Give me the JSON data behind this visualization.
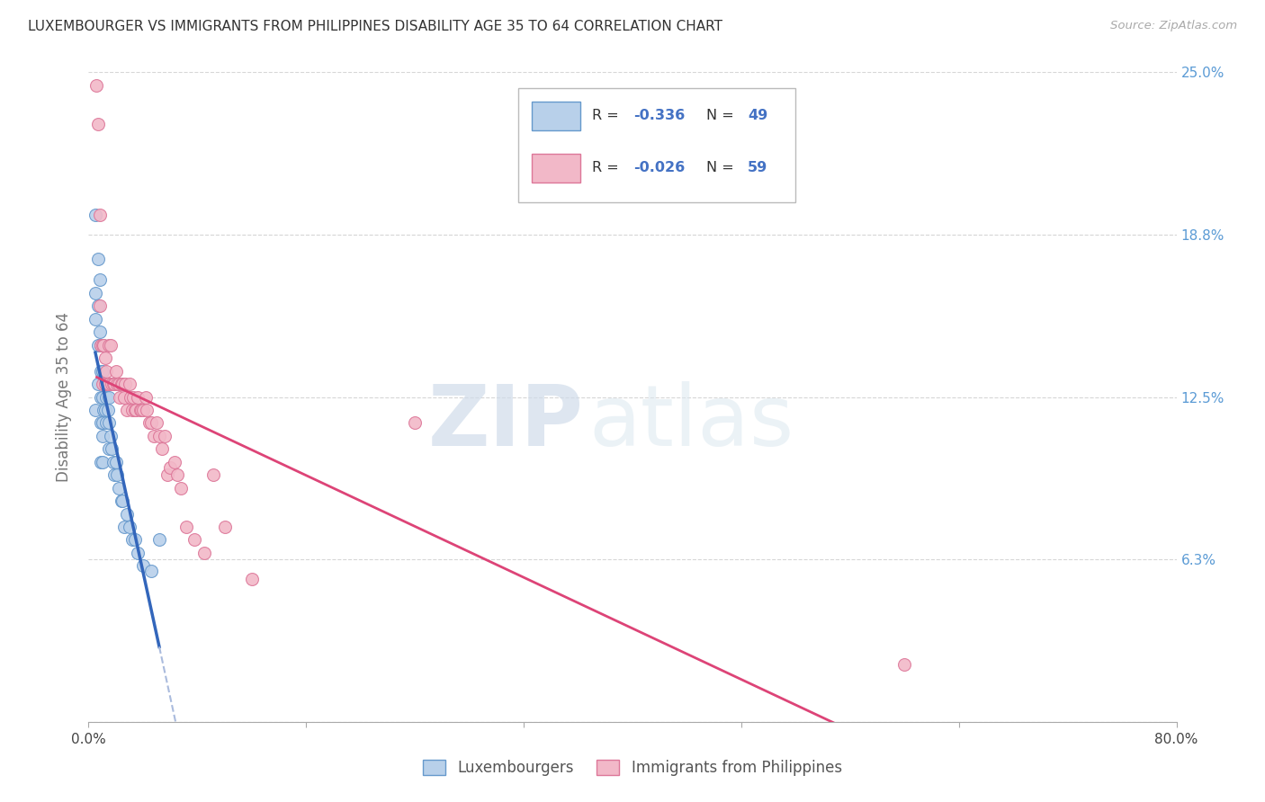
{
  "title": "LUXEMBOURGER VS IMMIGRANTS FROM PHILIPPINES DISABILITY AGE 35 TO 64 CORRELATION CHART",
  "source": "Source: ZipAtlas.com",
  "ylabel": "Disability Age 35 to 64",
  "xlim": [
    0.0,
    0.8
  ],
  "ylim": [
    0.0,
    0.25
  ],
  "yticks": [
    0.0,
    0.0625,
    0.125,
    0.1875,
    0.25
  ],
  "ytick_labels": [
    "",
    "6.3%",
    "12.5%",
    "18.8%",
    "25.0%"
  ],
  "xticks": [
    0.0,
    0.16,
    0.32,
    0.48,
    0.64,
    0.8
  ],
  "xtick_labels": [
    "0.0%",
    "",
    "",
    "",
    "",
    "80.0%"
  ],
  "background_color": "#ffffff",
  "grid_color": "#cccccc",
  "watermark_zip": "ZIP",
  "watermark_atlas": "atlas",
  "title_color": "#333333",
  "axis_label_color": "#777777",
  "right_ytick_color": "#5b9bd5",
  "reg_blue_color": "#3366bb",
  "reg_blue_dash_color": "#aabbdd",
  "reg_pink_color": "#dd4477",
  "series": [
    {
      "name": "Luxembourgers",
      "R": -0.336,
      "N": 49,
      "color": "#b8d0ea",
      "edge_color": "#6699cc",
      "x": [
        0.005,
        0.005,
        0.005,
        0.005,
        0.007,
        0.007,
        0.007,
        0.007,
        0.008,
        0.008,
        0.009,
        0.009,
        0.009,
        0.009,
        0.009,
        0.01,
        0.01,
        0.01,
        0.01,
        0.01,
        0.01,
        0.011,
        0.011,
        0.012,
        0.012,
        0.013,
        0.013,
        0.014,
        0.015,
        0.015,
        0.015,
        0.016,
        0.017,
        0.018,
        0.019,
        0.02,
        0.021,
        0.022,
        0.024,
        0.025,
        0.026,
        0.028,
        0.03,
        0.032,
        0.034,
        0.036,
        0.04,
        0.046,
        0.052
      ],
      "y": [
        0.195,
        0.165,
        0.155,
        0.12,
        0.178,
        0.16,
        0.145,
        0.13,
        0.17,
        0.15,
        0.145,
        0.135,
        0.125,
        0.115,
        0.1,
        0.145,
        0.135,
        0.125,
        0.115,
        0.11,
        0.1,
        0.13,
        0.12,
        0.13,
        0.12,
        0.125,
        0.115,
        0.12,
        0.125,
        0.115,
        0.105,
        0.11,
        0.105,
        0.1,
        0.095,
        0.1,
        0.095,
        0.09,
        0.085,
        0.085,
        0.075,
        0.08,
        0.075,
        0.07,
        0.07,
        0.065,
        0.06,
        0.058,
        0.07
      ]
    },
    {
      "name": "Immigrants from Philippines",
      "R": -0.026,
      "N": 59,
      "color": "#f2b8c8",
      "edge_color": "#dd7799",
      "x": [
        0.006,
        0.007,
        0.008,
        0.008,
        0.009,
        0.01,
        0.01,
        0.011,
        0.012,
        0.012,
        0.013,
        0.014,
        0.015,
        0.015,
        0.016,
        0.017,
        0.018,
        0.019,
        0.02,
        0.021,
        0.022,
        0.023,
        0.024,
        0.025,
        0.026,
        0.027,
        0.028,
        0.03,
        0.031,
        0.032,
        0.033,
        0.034,
        0.035,
        0.036,
        0.038,
        0.039,
        0.04,
        0.042,
        0.043,
        0.045,
        0.046,
        0.048,
        0.05,
        0.052,
        0.054,
        0.056,
        0.058,
        0.06,
        0.063,
        0.065,
        0.068,
        0.072,
        0.078,
        0.085,
        0.092,
        0.1,
        0.12,
        0.6,
        0.24
      ],
      "y": [
        0.245,
        0.23,
        0.16,
        0.195,
        0.145,
        0.145,
        0.13,
        0.145,
        0.14,
        0.13,
        0.135,
        0.13,
        0.145,
        0.13,
        0.145,
        0.13,
        0.13,
        0.13,
        0.135,
        0.13,
        0.13,
        0.125,
        0.13,
        0.13,
        0.125,
        0.13,
        0.12,
        0.13,
        0.125,
        0.12,
        0.125,
        0.12,
        0.12,
        0.125,
        0.12,
        0.12,
        0.12,
        0.125,
        0.12,
        0.115,
        0.115,
        0.11,
        0.115,
        0.11,
        0.105,
        0.11,
        0.095,
        0.098,
        0.1,
        0.095,
        0.09,
        0.075,
        0.07,
        0.065,
        0.095,
        0.075,
        0.055,
        0.022,
        0.115
      ]
    }
  ]
}
